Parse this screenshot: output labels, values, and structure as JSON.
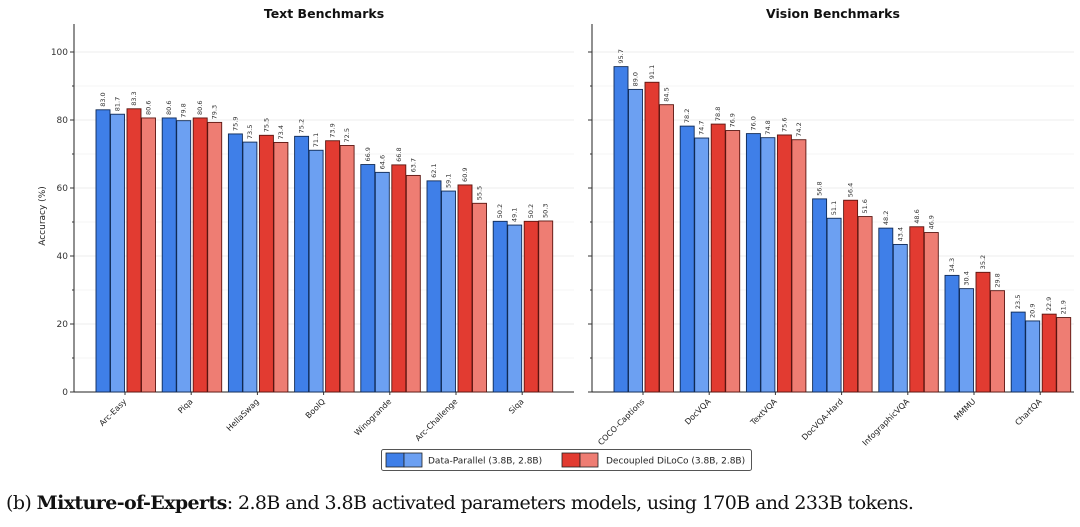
{
  "chart_data": [
    {
      "type": "bar",
      "title": "Text Benchmarks",
      "ylabel": "Accuracy (%)",
      "xlabel": "",
      "ylim": [
        0,
        108
      ],
      "yticks": [
        0,
        20,
        40,
        60,
        80,
        100
      ],
      "grid": true,
      "categories": [
        "Arc-Easy",
        "Piqa",
        "HellaSwag",
        "BoolQ",
        "Winogrande",
        "Arc-Challenge",
        "Siqa"
      ],
      "series": [
        {
          "name": "Data-Parallel 3.8B",
          "color": "#3f7fe8",
          "values": [
            83.0,
            80.6,
            75.9,
            75.2,
            66.9,
            62.1,
            50.2
          ]
        },
        {
          "name": "Data-Parallel 2.8B",
          "color": "#6ca0f2",
          "values": [
            81.7,
            79.8,
            73.5,
            71.1,
            64.6,
            59.1,
            49.1
          ]
        },
        {
          "name": "Decoupled DiLoCo 3.8B",
          "color": "#e23b31",
          "values": [
            83.3,
            80.6,
            75.5,
            73.9,
            66.8,
            60.9,
            50.2
          ]
        },
        {
          "name": "Decoupled DiLoCo 2.8B",
          "color": "#ee7d73",
          "values": [
            80.6,
            79.3,
            73.4,
            72.5,
            63.7,
            55.5,
            50.3
          ]
        }
      ]
    },
    {
      "type": "bar",
      "title": "Vision Benchmarks",
      "ylabel": "",
      "xlabel": "",
      "ylim": [
        0,
        108
      ],
      "yticks": [
        0,
        20,
        40,
        60,
        80,
        100
      ],
      "grid": true,
      "categories": [
        "COCO-Captions",
        "DocVQA",
        "TextVQA",
        "DocVQA-Hard",
        "InfographicVQA",
        "MMMU",
        "ChartQA"
      ],
      "series": [
        {
          "name": "Data-Parallel 3.8B",
          "color": "#3f7fe8",
          "values": [
            95.7,
            78.2,
            76.0,
            56.8,
            48.2,
            34.3,
            23.5
          ]
        },
        {
          "name": "Data-Parallel 2.8B",
          "color": "#6ca0f2",
          "values": [
            89.0,
            74.7,
            74.8,
            51.1,
            43.4,
            30.4,
            20.9
          ]
        },
        {
          "name": "Decoupled DiLoCo 3.8B",
          "color": "#e23b31",
          "values": [
            91.1,
            78.8,
            75.6,
            56.4,
            48.6,
            35.2,
            22.9
          ]
        },
        {
          "name": "Decoupled DiLoCo 2.8B",
          "color": "#ee7d73",
          "values": [
            84.5,
            76.9,
            74.2,
            51.6,
            46.9,
            29.8,
            21.9
          ]
        }
      ]
    }
  ],
  "legend": {
    "placement": "bottom-center",
    "entries": [
      {
        "label": "Data-Parallel (3.8B, 2.8B)",
        "colors": [
          "#3f7fe8",
          "#6ca0f2"
        ]
      },
      {
        "label": "Decoupled DiLoCo (3.8B, 2.8B)",
        "colors": [
          "#e23b31",
          "#ee7d73"
        ]
      }
    ]
  },
  "caption": {
    "prefix": "(b) ",
    "bold": "Mixture-of-Experts",
    "rest": ": 2.8B and 3.8B activated parameters models, using 170B and 233B tokens."
  }
}
